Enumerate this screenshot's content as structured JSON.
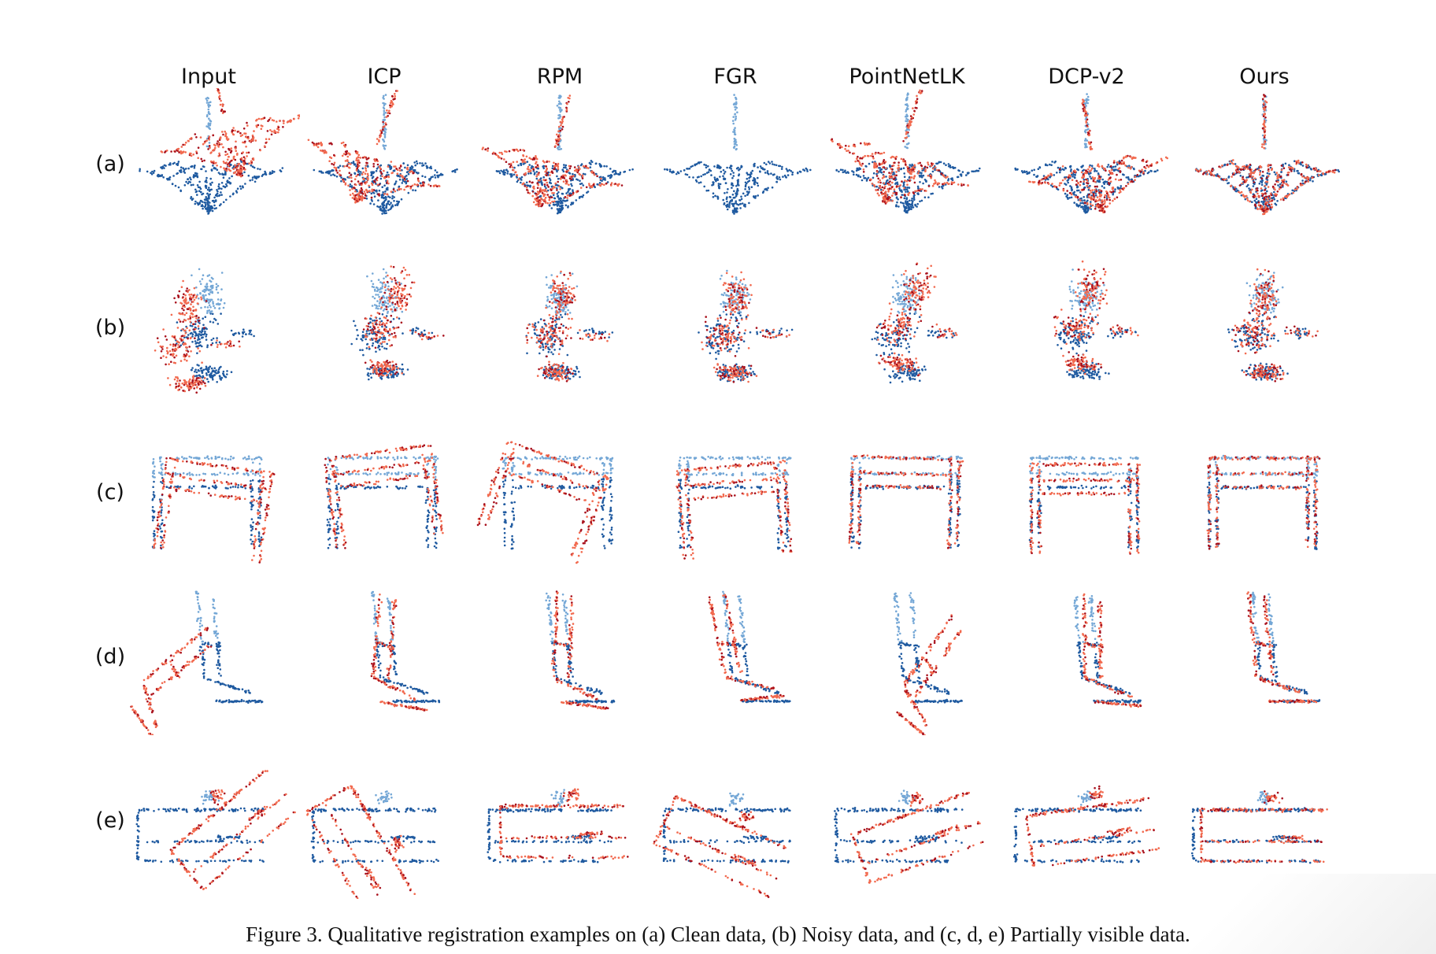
{
  "figure": {
    "columns": [
      "Input",
      "ICP",
      "RPM",
      "FGR",
      "PointNetLK",
      "DCP-v2",
      "Ours"
    ],
    "rows": [
      {
        "label": "(a)",
        "content": "Clean data",
        "object": "plant"
      },
      {
        "label": "(b)",
        "content": "Noisy data",
        "object": "flower-pot"
      },
      {
        "label": "(c)",
        "content": "Partially visible data",
        "object": "table"
      },
      {
        "label": "(d)",
        "content": "Partially visible data",
        "object": "chair"
      },
      {
        "label": "(e)",
        "content": "Partially visible data",
        "object": "desk"
      }
    ],
    "caption": "Figure 3. Qualitative registration examples on (a) Clean data, (b) Noisy data, and (c, d, e) Partially visible data."
  },
  "colors": {
    "source_light": "#74a7d6",
    "source_dark": "#1f5aa0",
    "template_light": "#f26a4f",
    "template_dark": "#a8101c"
  }
}
